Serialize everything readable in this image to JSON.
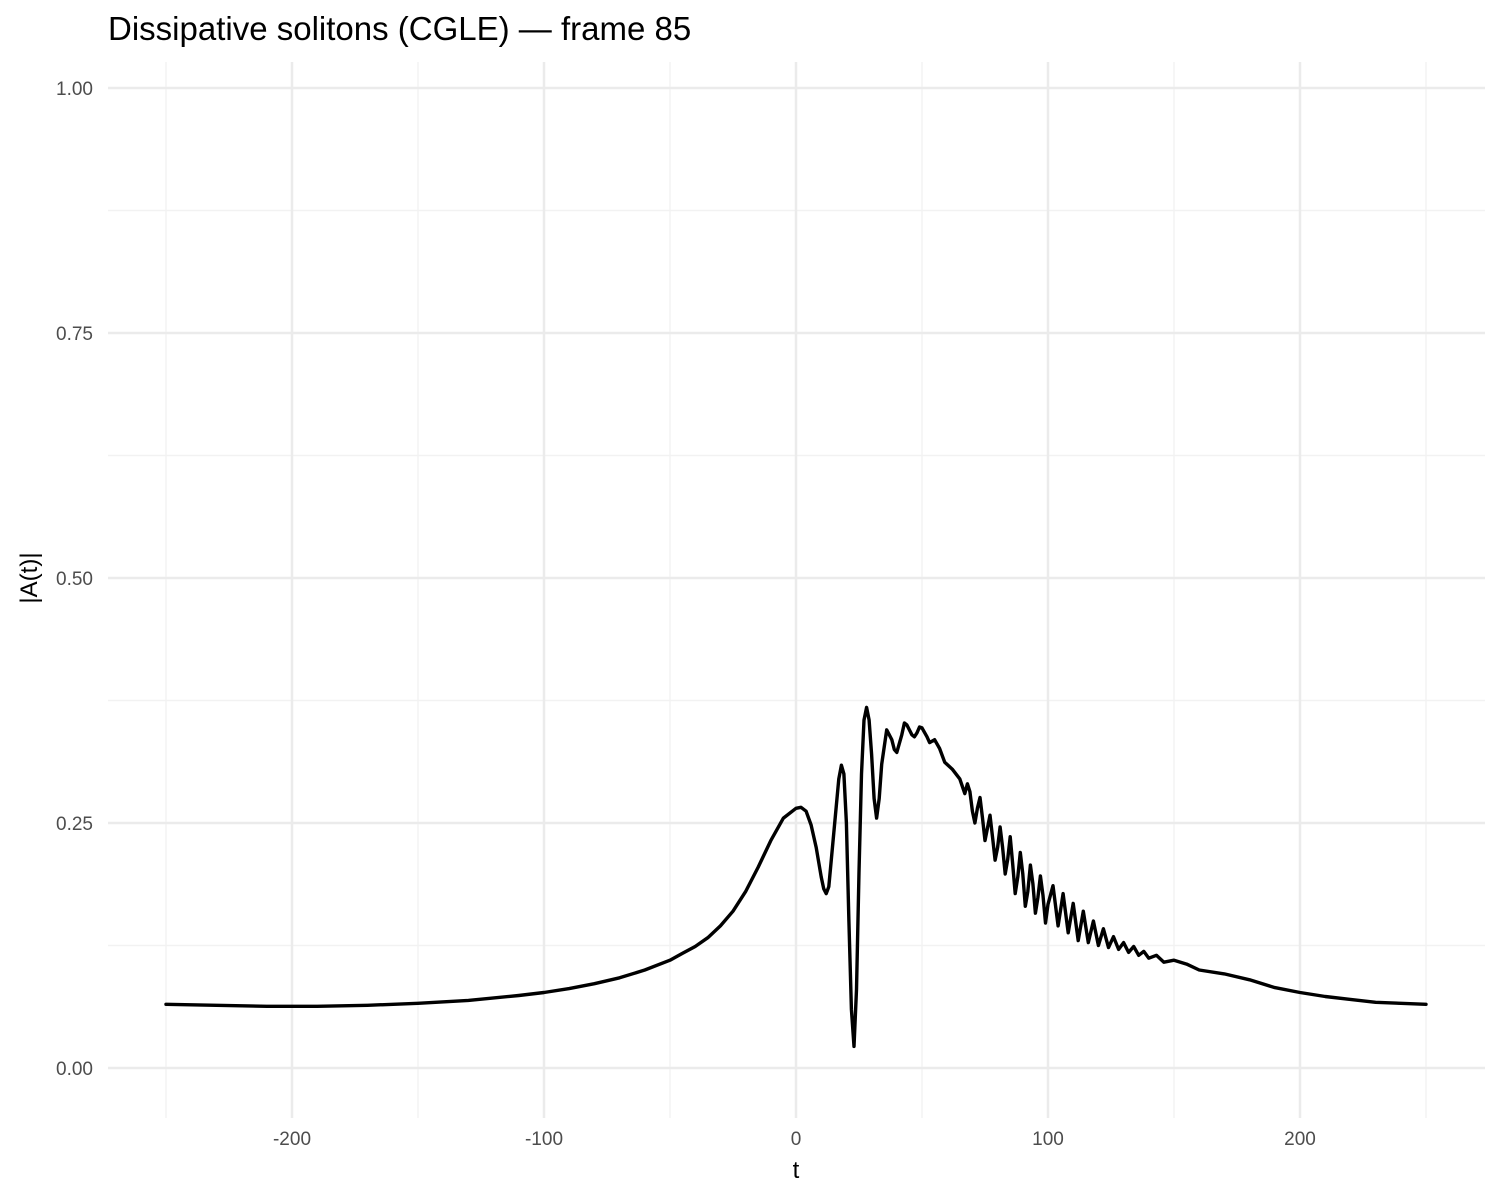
{
  "chart_data": {
    "type": "line",
    "title": "Dissipative solitons (CGLE) — frame 85",
    "xlabel": "t",
    "ylabel": "|A(t)|",
    "xlim": [
      -262,
      262
    ],
    "ylim": [
      -0.05,
      1.03
    ],
    "x_ticks": [
      -200,
      -100,
      0,
      100,
      200
    ],
    "x_tick_labels": [
      "-200",
      "-100",
      "0",
      "100",
      "200"
    ],
    "y_ticks": [
      0,
      0.25,
      0.5,
      0.75,
      1.0
    ],
    "y_tick_labels": [
      "0.00",
      "0.25",
      "0.50",
      "0.75",
      "1.00"
    ],
    "grid": true,
    "line_color": "#000000",
    "series": [
      {
        "x": [
          -250,
          -230,
          -210,
          -200,
          -190,
          -170,
          -150,
          -130,
          -110,
          -100,
          -90,
          -80,
          -70,
          -60,
          -50,
          -45,
          -40,
          -35,
          -30,
          -25,
          -20,
          -15,
          -10,
          -5,
          0,
          2,
          4,
          6,
          8,
          10,
          11,
          12,
          13,
          15,
          17,
          18,
          19,
          20,
          21,
          22,
          23,
          24,
          25,
          26,
          27,
          28,
          29,
          30,
          31,
          32,
          33,
          34,
          36,
          38,
          39,
          40,
          42,
          43,
          44,
          46,
          47,
          48,
          49,
          50,
          52,
          53,
          55,
          57,
          59,
          62,
          65,
          67,
          68,
          69,
          70,
          71,
          72,
          73,
          74,
          75,
          76,
          77,
          78,
          79,
          80,
          81,
          82,
          83,
          84,
          85,
          86,
          87,
          88,
          89,
          90,
          91,
          92,
          93,
          94,
          95,
          96,
          97,
          98,
          99,
          100,
          102,
          104,
          106,
          108,
          110,
          112,
          114,
          116,
          118,
          120,
          122,
          124,
          126,
          128,
          130,
          132,
          134,
          136,
          138,
          140,
          143,
          146,
          150,
          155,
          160,
          170,
          180,
          190,
          200,
          210,
          220,
          230,
          240,
          250
        ],
        "y": [
          0.065,
          0.064,
          0.063,
          0.063,
          0.063,
          0.064,
          0.066,
          0.069,
          0.074,
          0.077,
          0.081,
          0.086,
          0.092,
          0.1,
          0.11,
          0.117,
          0.124,
          0.133,
          0.145,
          0.16,
          0.18,
          0.205,
          0.232,
          0.255,
          0.265,
          0.266,
          0.262,
          0.248,
          0.225,
          0.195,
          0.183,
          0.178,
          0.185,
          0.24,
          0.295,
          0.309,
          0.3,
          0.25,
          0.15,
          0.06,
          0.022,
          0.08,
          0.2,
          0.3,
          0.355,
          0.368,
          0.355,
          0.32,
          0.275,
          0.255,
          0.275,
          0.31,
          0.345,
          0.335,
          0.325,
          0.322,
          0.34,
          0.352,
          0.35,
          0.34,
          0.338,
          0.342,
          0.348,
          0.347,
          0.338,
          0.332,
          0.335,
          0.326,
          0.312,
          0.305,
          0.295,
          0.28,
          0.29,
          0.282,
          0.262,
          0.25,
          0.265,
          0.276,
          0.255,
          0.232,
          0.245,
          0.258,
          0.235,
          0.212,
          0.225,
          0.246,
          0.225,
          0.198,
          0.213,
          0.236,
          0.208,
          0.178,
          0.195,
          0.22,
          0.198,
          0.165,
          0.18,
          0.207,
          0.188,
          0.158,
          0.174,
          0.196,
          0.176,
          0.148,
          0.167,
          0.186,
          0.145,
          0.178,
          0.138,
          0.168,
          0.13,
          0.16,
          0.128,
          0.15,
          0.125,
          0.142,
          0.123,
          0.134,
          0.121,
          0.128,
          0.118,
          0.124,
          0.115,
          0.119,
          0.112,
          0.115,
          0.108,
          0.11,
          0.106,
          0.1,
          0.096,
          0.09,
          0.082,
          0.077,
          0.073,
          0.07,
          0.067,
          0.066,
          0.065
        ]
      }
    ]
  }
}
